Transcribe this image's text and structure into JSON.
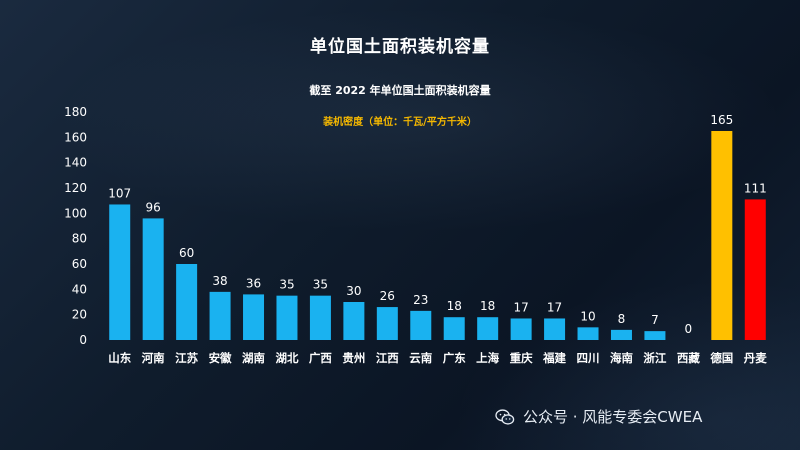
{
  "title": "单位国土面积装机容量",
  "subtitle": "截至 2022 年单位国土面积装机容量",
  "unit_label": "装机密度（单位：千瓦/平方千米）",
  "watermark": "公众号 · 风能专委会CWEA",
  "colors": {
    "default_bar": "#1ab2f0",
    "germany_bar": "#ffc000",
    "denmark_bar": "#ff0000",
    "text": "#ffffff"
  },
  "chart_data": {
    "type": "bar",
    "title": "截至 2022 年单位国土面积装机容量",
    "ylabel": "装机密度（单位：千瓦/平方千米）",
    "ylim": [
      0,
      180
    ],
    "yticks": [
      0,
      20,
      40,
      60,
      80,
      100,
      120,
      140,
      160,
      180
    ],
    "categories": [
      "山东",
      "河南",
      "江苏",
      "安徽",
      "湖南",
      "湖北",
      "广西",
      "贵州",
      "江西",
      "云南",
      "广东",
      "上海",
      "重庆",
      "福建",
      "四川",
      "海南",
      "浙江",
      "西藏",
      "德国",
      "丹麦"
    ],
    "values": [
      107,
      96,
      60,
      38,
      36,
      35,
      35,
      30,
      26,
      23,
      18,
      18,
      17,
      17,
      10,
      8,
      7,
      0,
      165,
      111
    ],
    "bar_colors": [
      "#1ab2f0",
      "#1ab2f0",
      "#1ab2f0",
      "#1ab2f0",
      "#1ab2f0",
      "#1ab2f0",
      "#1ab2f0",
      "#1ab2f0",
      "#1ab2f0",
      "#1ab2f0",
      "#1ab2f0",
      "#1ab2f0",
      "#1ab2f0",
      "#1ab2f0",
      "#1ab2f0",
      "#1ab2f0",
      "#1ab2f0",
      "#1ab2f0",
      "#ffc000",
      "#ff0000"
    ],
    "data_labels": true,
    "grid": false,
    "legend": "none"
  }
}
